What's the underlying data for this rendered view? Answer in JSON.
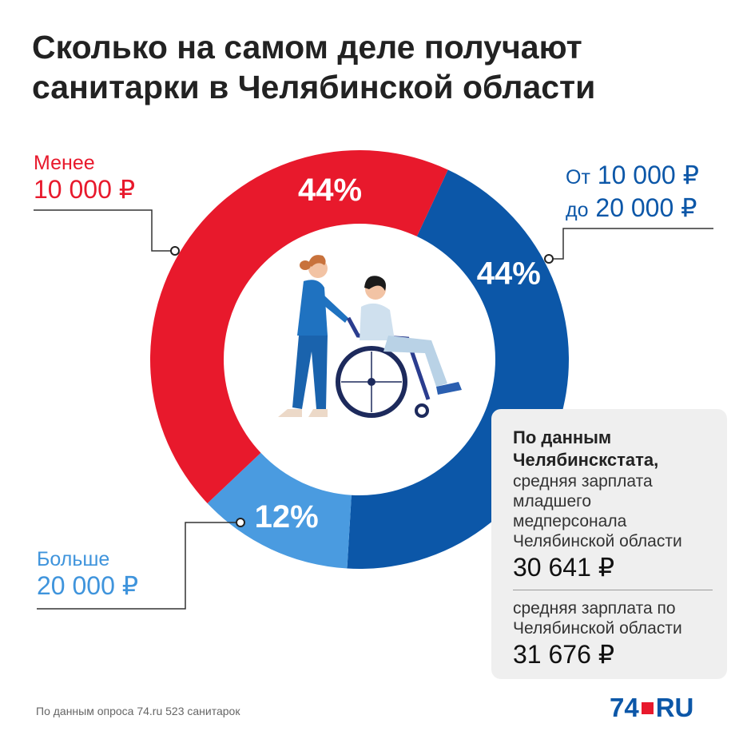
{
  "title": {
    "line1": "Сколько на самом деле получают",
    "line2": "санитарки в Челябинской области"
  },
  "chart_data": {
    "type": "pie",
    "donut": true,
    "categories": [
      "Менее 10 000 ₽",
      "От 10 000 ₽ до 20 000 ₽",
      "Больше 20 000 ₽"
    ],
    "values": [
      44,
      44,
      12
    ],
    "value_labels": [
      "44%",
      "44%",
      "12%"
    ],
    "colors": [
      "#e8192c",
      "#0c57a8",
      "#4a9be0"
    ]
  },
  "labels": {
    "red_line1": "Менее",
    "red_line2": "10 000 ₽",
    "blue_line1_prefix": "От",
    "blue_line1_value": "10 000 ₽",
    "blue_line2_prefix": "до",
    "blue_line2_value": "20 000 ₽",
    "light_line1": "Больше",
    "light_line2": "20 000 ₽"
  },
  "infobox": {
    "heading1": "По данным",
    "heading2": "Челябинскстата,",
    "text1": "средняя зарплата",
    "text2": "младшего",
    "text3": "медперсонала",
    "text4": "Челябинской области",
    "value1": "30 641 ₽",
    "text5": "средняя зарплата по",
    "text6": "Челябинской области",
    "value2": "31 676 ₽"
  },
  "footnote": "По данным опроса 74.ru 523 санитарок",
  "logo": {
    "num": "74",
    "ru": "RU"
  },
  "icons": {
    "illustration": "nurse-with-wheelchair-icon"
  }
}
